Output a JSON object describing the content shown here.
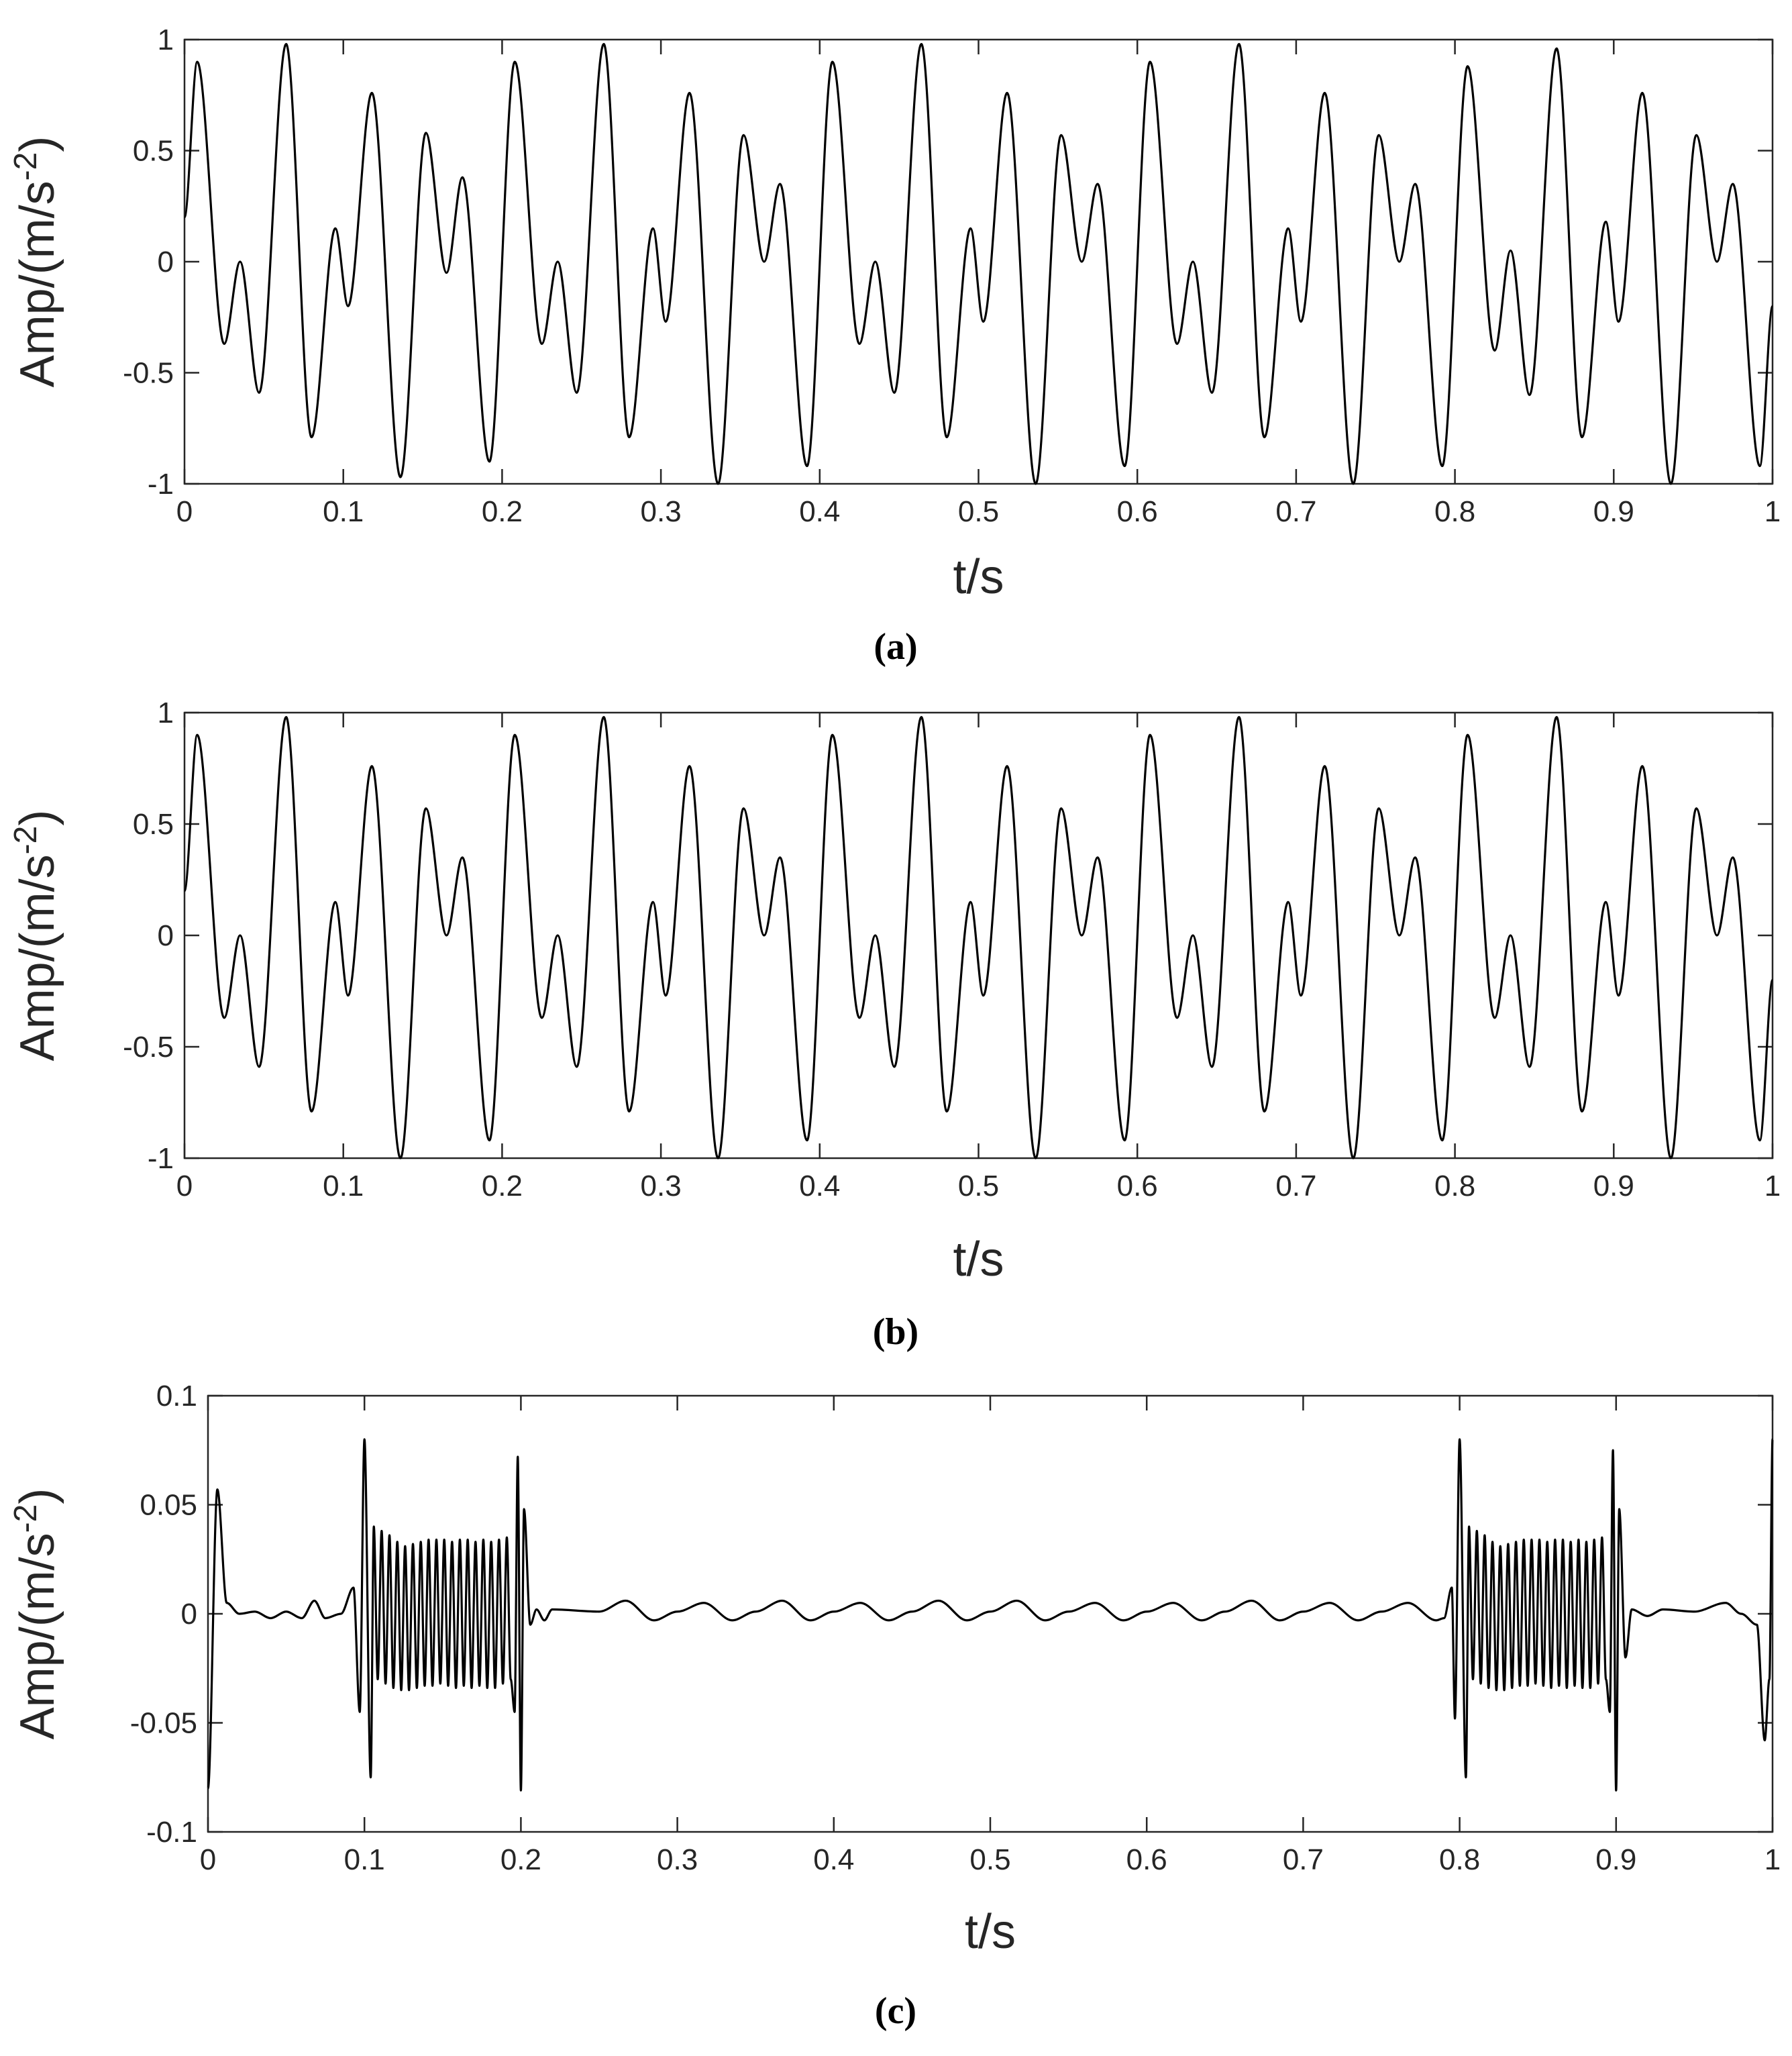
{
  "chart_data": [
    {
      "type": "line",
      "color": "#000000",
      "xlabel": "t/s",
      "ylabel": [
        "Amp/(m/s",
        "-2",
        ")"
      ],
      "caption": "(a)",
      "xlim": [
        0,
        1
      ],
      "ylim": [
        -1,
        1
      ],
      "xticks": [
        0,
        0.1,
        0.2,
        0.3,
        0.4,
        0.5,
        0.6,
        0.7,
        0.8,
        0.9,
        1
      ],
      "yticks": [
        -1,
        -0.5,
        0,
        0.5,
        1
      ],
      "x": [
        0,
        0.008,
        0.025,
        0.035,
        0.047,
        0.064,
        0.08,
        0.095,
        0.103,
        0.118,
        0.136,
        0.152,
        0.165,
        0.175,
        0.192,
        0.208,
        0.225,
        0.235,
        0.247,
        0.264,
        0.28,
        0.295,
        0.303,
        0.318,
        0.336,
        0.352,
        0.365,
        0.375,
        0.392,
        0.408,
        0.425,
        0.435,
        0.447,
        0.464,
        0.48,
        0.495,
        0.503,
        0.518,
        0.536,
        0.552,
        0.565,
        0.575,
        0.592,
        0.608,
        0.625,
        0.635,
        0.647,
        0.664,
        0.68,
        0.695,
        0.703,
        0.718,
        0.736,
        0.752,
        0.765,
        0.775,
        0.792,
        0.808,
        0.825,
        0.835,
        0.847,
        0.864,
        0.88,
        0.895,
        0.903,
        0.918,
        0.936,
        0.952,
        0.965,
        0.975,
        0.992,
        1.0
      ],
      "values": [
        0.2,
        0.9,
        -0.37,
        0,
        -0.59,
        0.98,
        -0.79,
        0.15,
        -0.2,
        0.76,
        -0.97,
        0.58,
        -0.05,
        0.38,
        -0.9,
        0.9,
        -0.37,
        0,
        -0.59,
        0.98,
        -0.79,
        0.15,
        -0.27,
        0.76,
        -1,
        0.57,
        0,
        0.35,
        -0.92,
        0.9,
        -0.37,
        0,
        -0.59,
        0.98,
        -0.79,
        0.15,
        -0.27,
        0.76,
        -1,
        0.57,
        0,
        0.35,
        -0.92,
        0.9,
        -0.37,
        0,
        -0.59,
        0.98,
        -0.79,
        0.15,
        -0.27,
        0.76,
        -1,
        0.57,
        0,
        0.35,
        -0.92,
        0.88,
        -0.4,
        0.05,
        -0.6,
        0.96,
        -0.79,
        0.18,
        -0.27,
        0.76,
        -1,
        0.57,
        0,
        0.35,
        -0.92,
        -0.2
      ]
    },
    {
      "type": "line",
      "color": "#000000",
      "xlabel": "t/s",
      "ylabel": [
        "Amp/(m/s",
        "-2",
        ")"
      ],
      "caption": "(b)",
      "xlim": [
        0,
        1
      ],
      "ylim": [
        -1,
        1
      ],
      "xticks": [
        0,
        0.1,
        0.2,
        0.3,
        0.4,
        0.5,
        0.6,
        0.7,
        0.8,
        0.9,
        1
      ],
      "yticks": [
        -1,
        -0.5,
        0,
        0.5,
        1
      ],
      "x": [
        0,
        0.008,
        0.025,
        0.035,
        0.047,
        0.064,
        0.08,
        0.095,
        0.103,
        0.118,
        0.136,
        0.152,
        0.165,
        0.175,
        0.192,
        0.208,
        0.225,
        0.235,
        0.247,
        0.264,
        0.28,
        0.295,
        0.303,
        0.318,
        0.336,
        0.352,
        0.365,
        0.375,
        0.392,
        0.408,
        0.425,
        0.435,
        0.447,
        0.464,
        0.48,
        0.495,
        0.503,
        0.518,
        0.536,
        0.552,
        0.565,
        0.575,
        0.592,
        0.608,
        0.625,
        0.635,
        0.647,
        0.664,
        0.68,
        0.695,
        0.703,
        0.718,
        0.736,
        0.752,
        0.765,
        0.775,
        0.792,
        0.808,
        0.825,
        0.835,
        0.847,
        0.864,
        0.88,
        0.895,
        0.903,
        0.918,
        0.936,
        0.952,
        0.965,
        0.975,
        0.992,
        1.0
      ],
      "values": [
        0.2,
        0.9,
        -0.37,
        0,
        -0.59,
        0.98,
        -0.79,
        0.15,
        -0.27,
        0.76,
        -1,
        0.57,
        0,
        0.35,
        -0.92,
        0.9,
        -0.37,
        0,
        -0.59,
        0.98,
        -0.79,
        0.15,
        -0.27,
        0.76,
        -1,
        0.57,
        0,
        0.35,
        -0.92,
        0.9,
        -0.37,
        0,
        -0.59,
        0.98,
        -0.79,
        0.15,
        -0.27,
        0.76,
        -1,
        0.57,
        0,
        0.35,
        -0.92,
        0.9,
        -0.37,
        0,
        -0.59,
        0.98,
        -0.79,
        0.15,
        -0.27,
        0.76,
        -1,
        0.57,
        0,
        0.35,
        -0.92,
        0.9,
        -0.37,
        0,
        -0.59,
        0.98,
        -0.79,
        0.15,
        -0.27,
        0.76,
        -1,
        0.57,
        0,
        0.35,
        -0.92,
        -0.2
      ]
    },
    {
      "type": "line",
      "color": "#000000",
      "xlabel": "t/s",
      "ylabel": [
        "Amp/(m/s",
        "-2",
        ")"
      ],
      "caption": "(c)",
      "xlim": [
        0,
        1
      ],
      "ylim": [
        -0.1,
        0.1
      ],
      "xticks": [
        0,
        0.1,
        0.2,
        0.3,
        0.4,
        0.5,
        0.6,
        0.7,
        0.8,
        0.9,
        1
      ],
      "yticks": [
        -0.1,
        -0.05,
        0,
        0.05,
        0.1
      ],
      "x": [
        0,
        0.006,
        0.012,
        0.02,
        0.03,
        0.04,
        0.05,
        0.06,
        0.068,
        0.075,
        0.085,
        0.093,
        0.097,
        0.1,
        0.104,
        0.106,
        0.1085,
        0.111,
        0.1135,
        0.116,
        0.1185,
        0.121,
        0.1235,
        0.126,
        0.1285,
        0.131,
        0.1335,
        0.136,
        0.1385,
        0.141,
        0.1435,
        0.146,
        0.1485,
        0.151,
        0.1535,
        0.156,
        0.1585,
        0.161,
        0.1635,
        0.166,
        0.1685,
        0.171,
        0.1735,
        0.176,
        0.1785,
        0.181,
        0.1835,
        0.186,
        0.1885,
        0.191,
        0.1935,
        0.196,
        0.198,
        0.2,
        0.202,
        0.206,
        0.21,
        0.215,
        0.22,
        0.25,
        0.267,
        0.285,
        0.3,
        0.317,
        0.335,
        0.35,
        0.367,
        0.385,
        0.4,
        0.417,
        0.435,
        0.45,
        0.467,
        0.485,
        0.5,
        0.517,
        0.535,
        0.55,
        0.567,
        0.585,
        0.6,
        0.617,
        0.635,
        0.65,
        0.667,
        0.685,
        0.7,
        0.717,
        0.735,
        0.75,
        0.767,
        0.785,
        0.79,
        0.795,
        0.797,
        0.8,
        0.804,
        0.806,
        0.8085,
        0.811,
        0.8135,
        0.816,
        0.8185,
        0.821,
        0.8235,
        0.826,
        0.8285,
        0.831,
        0.8335,
        0.836,
        0.8385,
        0.841,
        0.8435,
        0.846,
        0.8485,
        0.851,
        0.8535,
        0.856,
        0.8585,
        0.861,
        0.8635,
        0.866,
        0.8685,
        0.871,
        0.8735,
        0.876,
        0.8785,
        0.881,
        0.8835,
        0.886,
        0.8885,
        0.891,
        0.8935,
        0.896,
        0.898,
        0.9,
        0.902,
        0.906,
        0.91,
        0.92,
        0.93,
        0.95,
        0.97,
        0.98,
        0.99,
        0.995,
        0.998,
        1
      ],
      "values": [
        -0.08,
        0.057,
        0.005,
        0,
        0.001,
        -0.002,
        0.001,
        -0.002,
        0.006,
        -0.002,
        0,
        0.012,
        -0.045,
        0.08,
        -0.075,
        0.04,
        -0.03,
        0.038,
        -0.032,
        0.036,
        -0.034,
        0.033,
        -0.035,
        0.031,
        -0.035,
        0.032,
        -0.034,
        0.033,
        -0.033,
        0.034,
        -0.033,
        0.034,
        -0.032,
        0.034,
        -0.033,
        0.033,
        -0.034,
        0.034,
        -0.033,
        0.034,
        -0.034,
        0.033,
        -0.033,
        0.034,
        -0.034,
        0.033,
        -0.034,
        0.034,
        -0.032,
        0.035,
        -0.03,
        -0.045,
        0.072,
        -0.081,
        0.048,
        -0.005,
        0.002,
        -0.003,
        0.002,
        0.001,
        0.006,
        -0.003,
        0.001,
        0.005,
        -0.003,
        0.001,
        0.006,
        -0.003,
        0.001,
        0.005,
        -0.003,
        0.001,
        0.006,
        -0.003,
        0.001,
        0.006,
        -0.003,
        0.001,
        0.005,
        -0.003,
        0.001,
        0.005,
        -0.003,
        0.001,
        0.006,
        -0.003,
        0.001,
        0.005,
        -0.003,
        0.001,
        0.005,
        -0.003,
        -0.002,
        0.012,
        -0.048,
        0.08,
        -0.075,
        0.04,
        -0.03,
        0.038,
        -0.032,
        0.036,
        -0.034,
        0.033,
        -0.035,
        0.031,
        -0.035,
        0.032,
        -0.034,
        0.033,
        -0.033,
        0.034,
        -0.033,
        0.034,
        -0.032,
        0.034,
        -0.033,
        0.033,
        -0.034,
        0.034,
        -0.033,
        0.034,
        -0.034,
        0.033,
        -0.033,
        0.034,
        -0.034,
        0.033,
        -0.034,
        0.034,
        -0.032,
        0.035,
        -0.03,
        -0.045,
        0.075,
        -0.081,
        0.048,
        -0.02,
        0.002,
        -0.001,
        0.002,
        0.001,
        0.005,
        0,
        -0.005,
        -0.058,
        -0.03,
        0.08
      ]
    }
  ]
}
